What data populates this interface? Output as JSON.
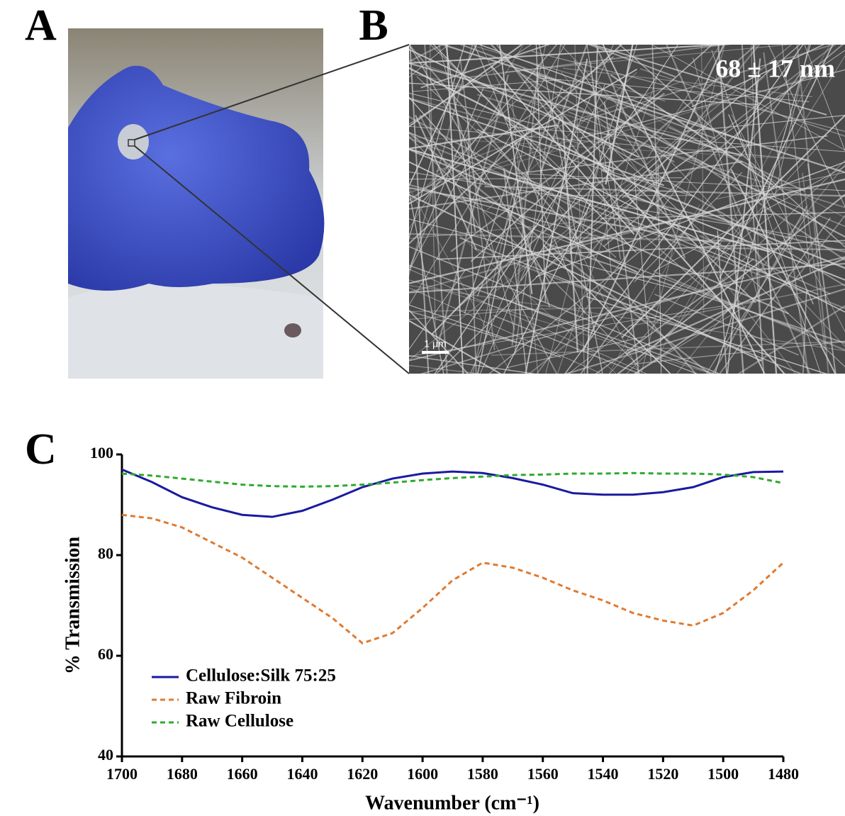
{
  "panels": [
    {
      "label": "A"
    },
    {
      "label": "B",
      "annotation": "68 ± 17 nm",
      "scale_bar": "1 µm"
    }
  ],
  "chart_data": {
    "type": "line",
    "label": "C",
    "x_label": "Wavenumber (cm⁻¹)",
    "y_label": "% Transmission",
    "x": [
      1700,
      1690,
      1680,
      1670,
      1660,
      1650,
      1640,
      1630,
      1620,
      1610,
      1600,
      1590,
      1580,
      1570,
      1560,
      1550,
      1540,
      1530,
      1520,
      1510,
      1500,
      1490,
      1480
    ],
    "series": [
      {
        "name": "Cellulose:Silk 75:25",
        "color": "#1a1aa0",
        "style": "solid",
        "values": [
          97,
          94.5,
          91.5,
          89.5,
          88,
          87.6,
          88.8,
          91,
          93.5,
          95.2,
          96.2,
          96.6,
          96.3,
          95.3,
          94,
          92.3,
          92,
          92,
          92.5,
          93.5,
          95.5,
          96.5,
          96.6
        ]
      },
      {
        "name": "Raw Fibroin",
        "color": "#e07a30",
        "style": "dashed",
        "values": [
          88,
          87.3,
          85.5,
          82.5,
          79.5,
          75.5,
          71.5,
          67.5,
          62.5,
          64.5,
          69.5,
          75,
          78.5,
          77.5,
          75.5,
          73,
          71,
          68.5,
          67,
          66,
          68.5,
          73,
          78.5
        ]
      },
      {
        "name": "Raw Cellulose",
        "color": "#2eaa2e",
        "style": "dashed",
        "values": [
          96.2,
          95.8,
          95.2,
          94.6,
          94,
          93.7,
          93.6,
          93.7,
          94,
          94.4,
          94.9,
          95.3,
          95.6,
          95.9,
          96,
          96.2,
          96.2,
          96.3,
          96.2,
          96.2,
          96,
          95.5,
          94.3
        ]
      }
    ],
    "xlim": [
      1700,
      1480
    ],
    "xticks": [
      1700,
      1680,
      1660,
      1640,
      1620,
      1600,
      1580,
      1560,
      1540,
      1520,
      1500,
      1480
    ],
    "ylim": [
      40,
      100
    ],
    "yticks": [
      40,
      60,
      80,
      100
    ],
    "legend": "lower left"
  }
}
